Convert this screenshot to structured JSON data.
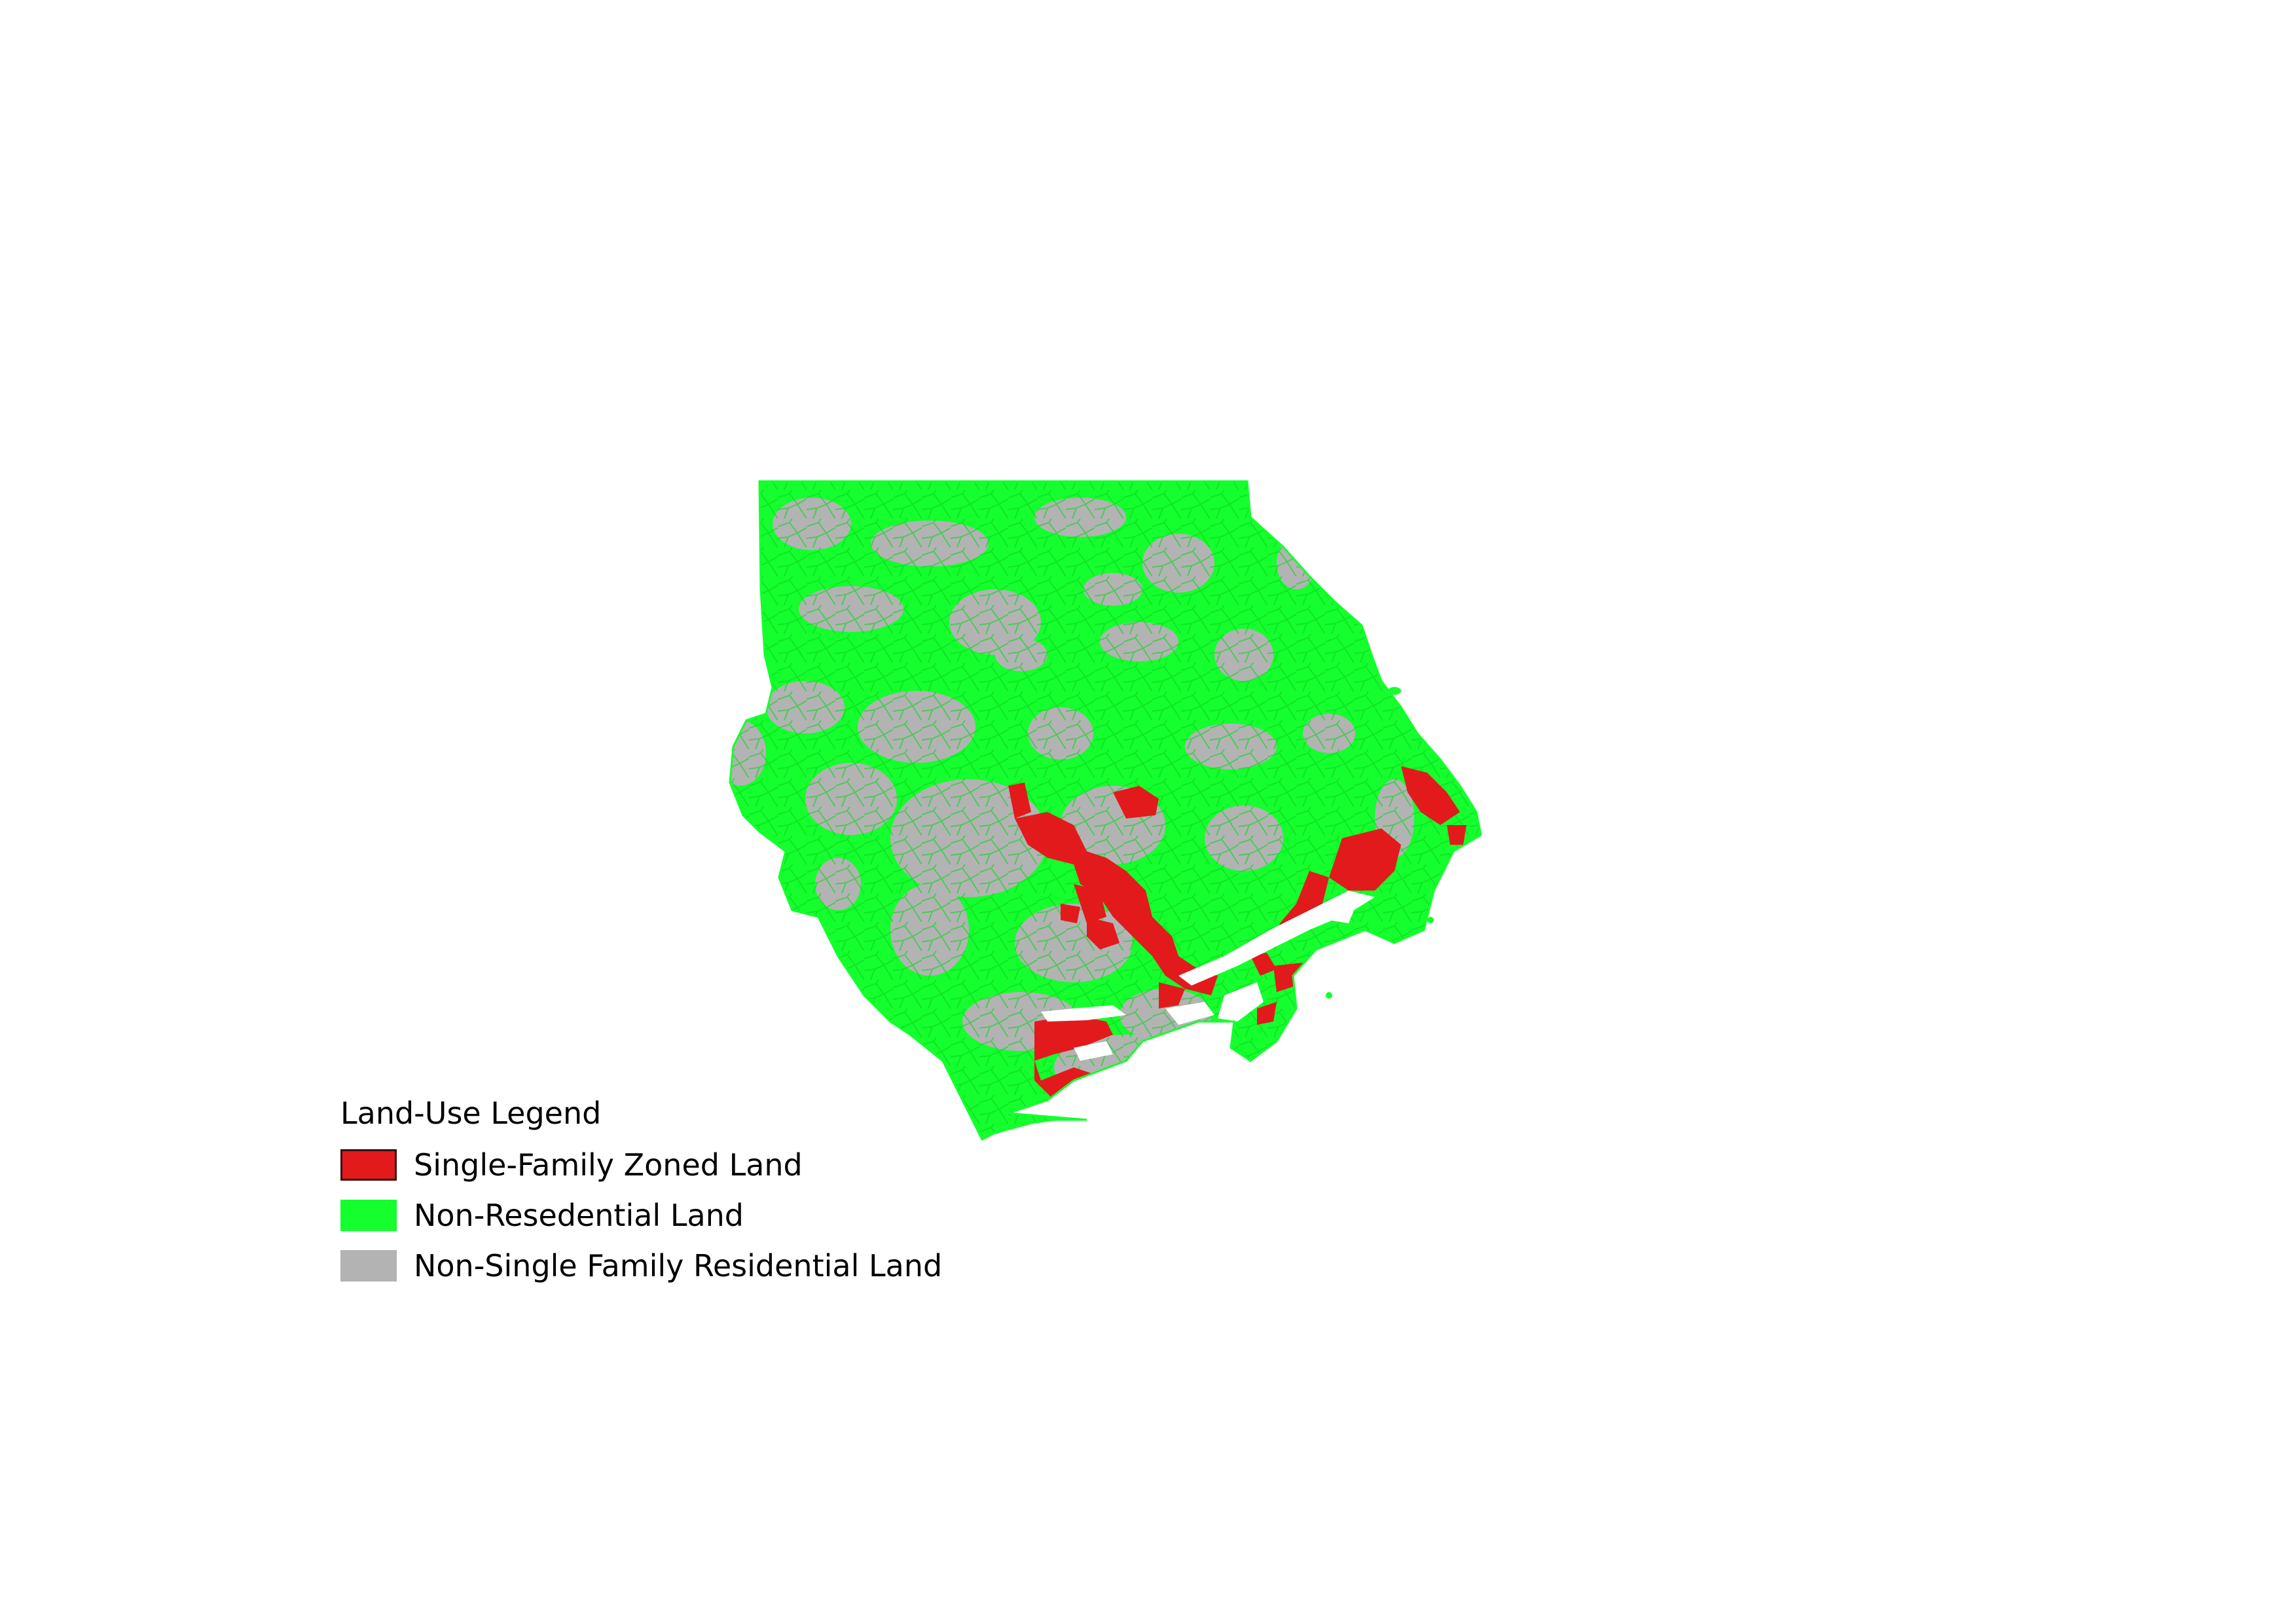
{
  "legend": {
    "title": "Land-Use Legend",
    "items": [
      {
        "label": "Single-Family Zoned Land",
        "color": "#e31a1c"
      },
      {
        "label": "Non-Resedential Land",
        "color": "#14ff2d"
      },
      {
        "label": "Non-Single Family Residential Land",
        "color": "#b3b3b3"
      }
    ]
  },
  "colors": {
    "background": "#ffffff",
    "parcel_outline": "#0bd61f"
  }
}
